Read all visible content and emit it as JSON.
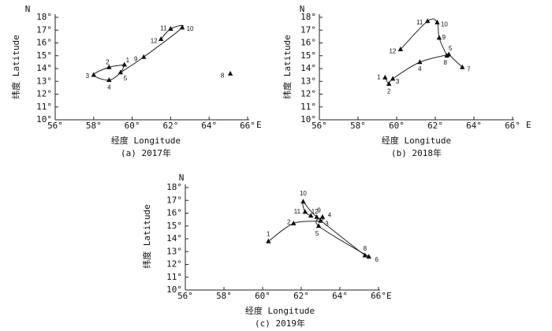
{
  "chart_data": [
    {
      "type": "line",
      "caption": "(a) 2017年",
      "xlabel": "经度 Longitude",
      "ylabel": "纬度 Latitude",
      "x_unit": "E",
      "y_unit": "N",
      "xlim": [
        56,
        66
      ],
      "ylim": [
        10,
        18
      ],
      "x_ticks": [
        "56°",
        "58°",
        "60°",
        "62°",
        "64°",
        "66°"
      ],
      "y_ticks": [
        "10°",
        "11°",
        "12°",
        "13°",
        "14°",
        "15°",
        "16°",
        "17°",
        "18°"
      ],
      "points": [
        {
          "label": "1",
          "x": 59.6,
          "y": 14.3
        },
        {
          "label": "2",
          "x": 58.8,
          "y": 14.1
        },
        {
          "label": "3",
          "x": 58.0,
          "y": 13.5
        },
        {
          "label": "4",
          "x": 58.8,
          "y": 13.1
        },
        {
          "label": "5",
          "x": 59.4,
          "y": 13.7
        },
        {
          "label": "8",
          "x": 65.1,
          "y": 13.6
        },
        {
          "label": "9",
          "x": 60.6,
          "y": 14.9
        },
        {
          "label": "10",
          "x": 62.6,
          "y": 17.2
        },
        {
          "label": "11",
          "x": 62.0,
          "y": 17.1
        },
        {
          "label": "12",
          "x": 61.5,
          "y": 16.3
        }
      ]
    },
    {
      "type": "line",
      "caption": "(b) 2018年",
      "xlabel": "经度 Longitude",
      "ylabel": "纬度 Latitude",
      "x_unit": "E",
      "y_unit": "N",
      "xlim": [
        56,
        66
      ],
      "ylim": [
        10,
        18
      ],
      "x_ticks": [
        "56°",
        "58°",
        "60°",
        "62°",
        "64°",
        "66°"
      ],
      "y_ticks": [
        "10°",
        "11°",
        "12°",
        "13°",
        "14°",
        "15°",
        "16°",
        "17°",
        "18°"
      ],
      "points": [
        {
          "label": "1",
          "x": 59.4,
          "y": 13.3
        },
        {
          "label": "2",
          "x": 59.6,
          "y": 12.8
        },
        {
          "label": "3",
          "x": 59.8,
          "y": 13.2
        },
        {
          "label": "4",
          "x": 61.2,
          "y": 14.5
        },
        {
          "label": "5",
          "x": 62.7,
          "y": 15.1
        },
        {
          "label": "7",
          "x": 63.4,
          "y": 14.1
        },
        {
          "label": "8",
          "x": 62.6,
          "y": 15.0
        },
        {
          "label": "9",
          "x": 62.2,
          "y": 16.4
        },
        {
          "label": "10",
          "x": 62.1,
          "y": 17.6
        },
        {
          "label": "11",
          "x": 61.6,
          "y": 17.7
        },
        {
          "label": "12",
          "x": 60.2,
          "y": 15.5
        }
      ]
    },
    {
      "type": "line",
      "caption": "(c) 2019年",
      "xlabel": "经度 Longitude",
      "ylabel": "纬度 Latitude",
      "x_unit": "E",
      "y_unit": "N",
      "xlim": [
        56,
        66
      ],
      "ylim": [
        10,
        18
      ],
      "x_ticks": [
        "56°",
        "58°",
        "60°",
        "62°",
        "64°",
        "66°"
      ],
      "y_ticks": [
        "10°",
        "11°",
        "12°",
        "13°",
        "14°",
        "15°",
        "16°",
        "17°",
        "18°"
      ],
      "points": [
        {
          "label": "1",
          "x": 60.3,
          "y": 13.8
        },
        {
          "label": "2",
          "x": 61.6,
          "y": 15.2
        },
        {
          "label": "3",
          "x": 63.0,
          "y": 15.4
        },
        {
          "label": "4",
          "x": 63.1,
          "y": 15.7
        },
        {
          "label": "5",
          "x": 62.9,
          "y": 15.0
        },
        {
          "label": "6",
          "x": 65.5,
          "y": 12.6
        },
        {
          "label": "8",
          "x": 65.3,
          "y": 12.7
        },
        {
          "label": "9",
          "x": 62.8,
          "y": 15.7
        },
        {
          "label": "10",
          "x": 62.1,
          "y": 16.9
        },
        {
          "label": "11",
          "x": 62.2,
          "y": 16.1
        },
        {
          "label": "12",
          "x": 62.5,
          "y": 15.8
        }
      ]
    }
  ]
}
